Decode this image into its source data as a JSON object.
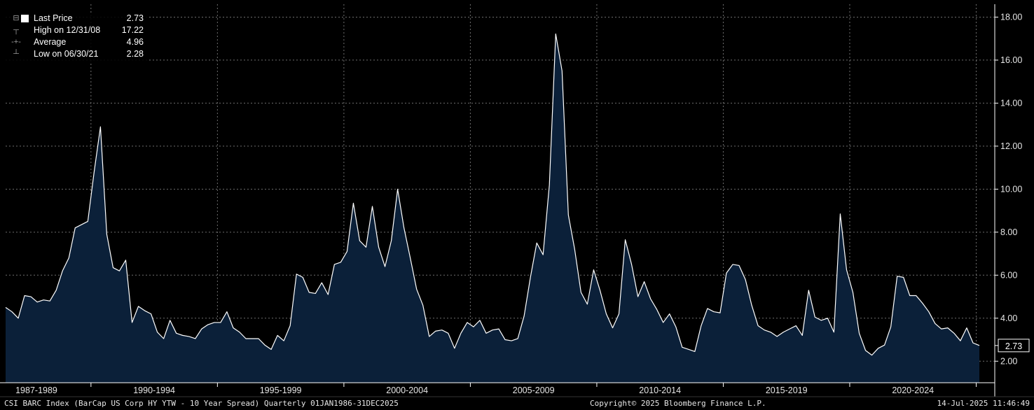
{
  "legend": {
    "items": [
      {
        "marker": "swatch",
        "label": "Last Price",
        "value": "2.73"
      },
      {
        "marker": "high",
        "label": "High on 12/31/08",
        "value": "17.22"
      },
      {
        "marker": "average",
        "label": "Average",
        "value": "4.96"
      },
      {
        "marker": "low",
        "label": "Low on 06/30/21",
        "value": "2.28"
      }
    ]
  },
  "footer": {
    "left": "CSI BARC Index (BarCap US Corp HY YTW - 10 Year Spread)  Quarterly 01JAN1986-31DEC2025",
    "center": "Copyright© 2025 Bloomberg Finance L.P.",
    "right": "14-Jul-2025 11:46:49"
  },
  "colors": {
    "background": "#000000",
    "area_fill": "#0b2039",
    "line": "#ffffff",
    "grid": "#6e6e6e",
    "axis": "#ffffff"
  },
  "chart_data": {
    "type": "area",
    "title": "",
    "xlabel": "",
    "ylabel": "",
    "y_axis_side": "right",
    "ylim": [
      1,
      18.6
    ],
    "grid": true,
    "yticks": [
      2,
      4,
      6,
      8,
      10,
      12,
      14,
      16,
      18
    ],
    "ytick_labels": [
      "2.00",
      "4.00",
      "6.00",
      "8.00",
      "10.00",
      "12.00",
      "14.00",
      "16.00",
      "18.00"
    ],
    "x_start": "1986-Q3",
    "x_step": "quarter",
    "x_period_labels": [
      "1987-1989",
      "1990-1994",
      "1995-1999",
      "2000-2004",
      "2005-2009",
      "2010-2014",
      "2015-2019",
      "2020-2024"
    ],
    "last_value_label": "2.73",
    "series": [
      {
        "values": [
          4.5,
          4.3,
          4.0,
          5.05,
          5.0,
          4.75,
          4.85,
          4.8,
          5.3,
          6.2,
          6.8,
          8.2,
          8.35,
          8.5,
          10.8,
          12.9,
          7.9,
          6.35,
          6.2,
          6.7,
          3.8,
          4.55,
          4.35,
          4.2,
          3.35,
          3.05,
          3.9,
          3.3,
          3.2,
          3.15,
          3.05,
          3.5,
          3.7,
          3.8,
          3.8,
          4.3,
          3.55,
          3.35,
          3.05,
          3.05,
          3.05,
          2.75,
          2.55,
          3.2,
          2.95,
          3.65,
          6.05,
          5.9,
          5.2,
          5.15,
          5.65,
          5.1,
          6.5,
          6.6,
          7.1,
          9.35,
          7.6,
          7.3,
          9.2,
          7.3,
          6.4,
          7.6,
          10.0,
          8.2,
          6.8,
          5.35,
          4.6,
          3.15,
          3.4,
          3.45,
          3.3,
          2.6,
          3.3,
          3.8,
          3.6,
          3.9,
          3.3,
          3.45,
          3.5,
          3.0,
          2.95,
          3.05,
          4.1,
          5.9,
          7.5,
          6.95,
          10.2,
          17.22,
          15.5,
          8.8,
          7.2,
          5.2,
          4.65,
          6.25,
          5.3,
          4.2,
          3.55,
          4.2,
          7.65,
          6.5,
          5.0,
          5.7,
          4.9,
          4.4,
          3.8,
          4.2,
          3.6,
          2.65,
          2.55,
          2.45,
          3.65,
          4.45,
          4.3,
          4.25,
          6.1,
          6.5,
          6.45,
          5.8,
          4.6,
          3.65,
          3.45,
          3.35,
          3.15,
          3.35,
          3.5,
          3.65,
          3.2,
          5.3,
          4.05,
          3.9,
          4.0,
          3.35,
          8.85,
          6.25,
          5.2,
          3.3,
          2.5,
          2.28,
          2.6,
          2.75,
          3.6,
          5.95,
          5.9,
          5.05,
          5.05,
          4.7,
          4.3,
          3.75,
          3.5,
          3.55,
          3.3,
          2.95,
          3.55,
          2.85,
          2.73
        ]
      }
    ]
  }
}
